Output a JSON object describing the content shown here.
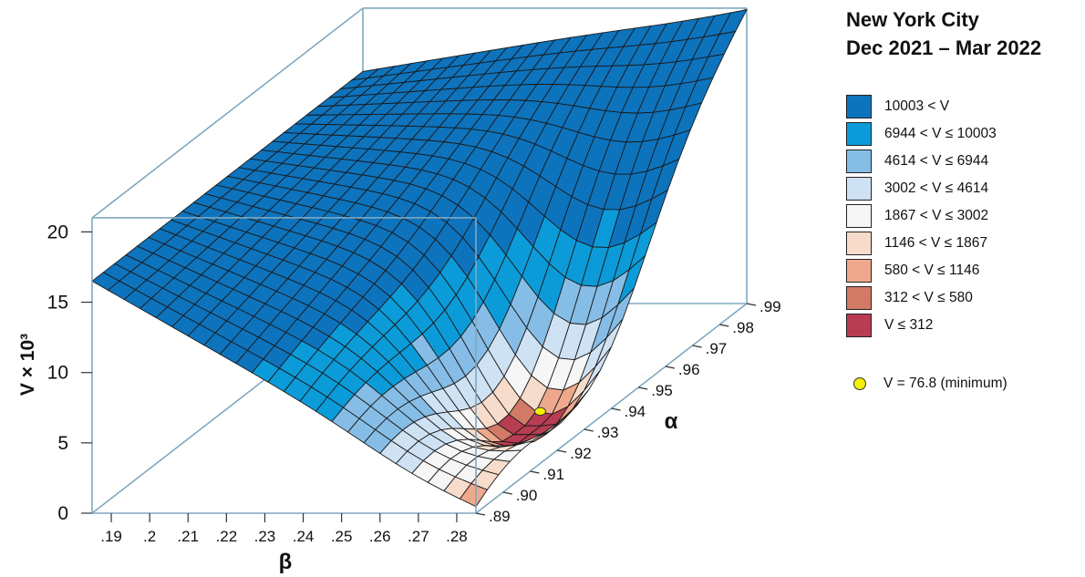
{
  "chart_data": {
    "type": "surface3d",
    "title": "New York City",
    "subtitle": "Dec 2021 – Mar 2022",
    "xlabel": "β",
    "ylabel": "α",
    "zlabel": "V × 10³",
    "x_range": [
      0.185,
      0.285
    ],
    "y_range": [
      0.89,
      0.99
    ],
    "z_range": [
      0,
      21
    ],
    "x_ticks": [
      0.19,
      0.2,
      0.21,
      0.22,
      0.23,
      0.24,
      0.25,
      0.26,
      0.27,
      0.28
    ],
    "x_tick_labels": [
      ".19",
      ".2",
      ".21",
      ".22",
      ".23",
      ".24",
      ".25",
      ".26",
      ".27",
      ".28"
    ],
    "y_ticks": [
      0.89,
      0.9,
      0.91,
      0.92,
      0.93,
      0.94,
      0.95,
      0.96,
      0.97,
      0.98,
      0.99
    ],
    "y_tick_labels": [
      ".89",
      ".90",
      ".91",
      ".92",
      ".93",
      ".94",
      ".95",
      ".96",
      ".97",
      ".98",
      ".99"
    ],
    "z_ticks": [
      0,
      5,
      10,
      15,
      20
    ],
    "z_tick_labels": [
      "0",
      "5",
      "10",
      "15",
      "20"
    ],
    "surface_corner_values": {
      "beta_0.185_alpha_0.89": 16.5,
      "beta_0.185_alpha_0.99": 16.5,
      "beta_0.285_alpha_0.89": 0.9,
      "beta_0.285_alpha_0.99": 21.0
    },
    "minimum": {
      "beta": 0.27,
      "alpha": 0.935,
      "V": 76.8
    },
    "legend": {
      "placement": "right",
      "bins": [
        {
          "label": "10003 < V",
          "color": "#0d73bd"
        },
        {
          "label": "6944 < V ≤ 10003",
          "color": "#0c9bd9"
        },
        {
          "label": "4614 < V ≤ 6944",
          "color": "#86bde6"
        },
        {
          "label": "3002 < V ≤ 4614",
          "color": "#cfe2f4"
        },
        {
          "label": "1867 < V ≤ 3002",
          "color": "#f6f6f6"
        },
        {
          "label": "1146 < V ≤ 1867",
          "color": "#f8dccb"
        },
        {
          "label": "580 < V ≤ 1146",
          "color": "#eea98c"
        },
        {
          "label": "312 < V ≤ 580",
          "color": "#d27a66"
        },
        {
          "label": "V ≤ 312",
          "color": "#b83d52"
        }
      ],
      "minimum_label": "V = 76.8 (minimum)",
      "minimum_color": "#f4f000"
    },
    "box_color": "#7fa8c0"
  }
}
